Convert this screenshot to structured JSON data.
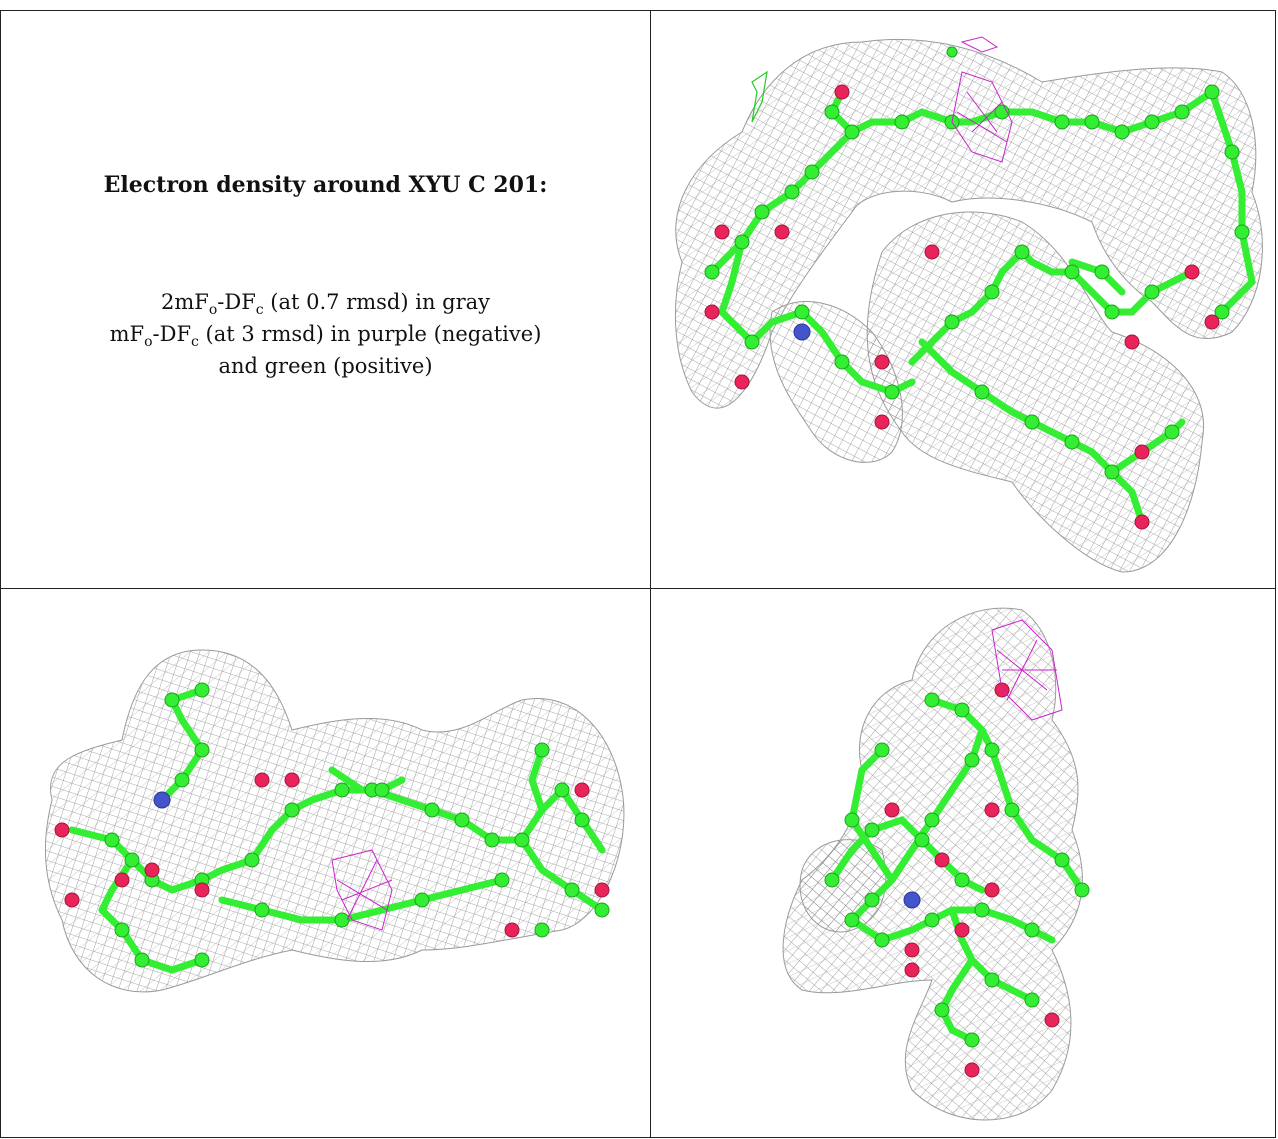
{
  "caption": {
    "title": "Electron density around XYU C 201:",
    "line1_prefix": "2mF",
    "line1_sub1": "o",
    "line1_mid": "-DF",
    "line1_sub2": "c",
    "line1_suffix": " (at 0.7 rmsd) in gray",
    "line2_prefix": "mF",
    "line2_sub1": "o",
    "line2_mid": "-DF",
    "line2_sub2": "c",
    "line2_suffix": " (at 3 rmsd) in purple (negative)",
    "line3": "and green (positive)"
  },
  "colors": {
    "mesh_gray": "#8c8c8c",
    "carbon_green": "#33ee33",
    "oxygen_red": "#e8245a",
    "nitrogen_blue": "#4455cc",
    "negative_purple": "#cc22cc",
    "positive_green": "#22cc22",
    "border": "#222222"
  },
  "views": [
    {
      "id": "view-top-right"
    },
    {
      "id": "view-bottom-left"
    },
    {
      "id": "view-bottom-right"
    }
  ]
}
